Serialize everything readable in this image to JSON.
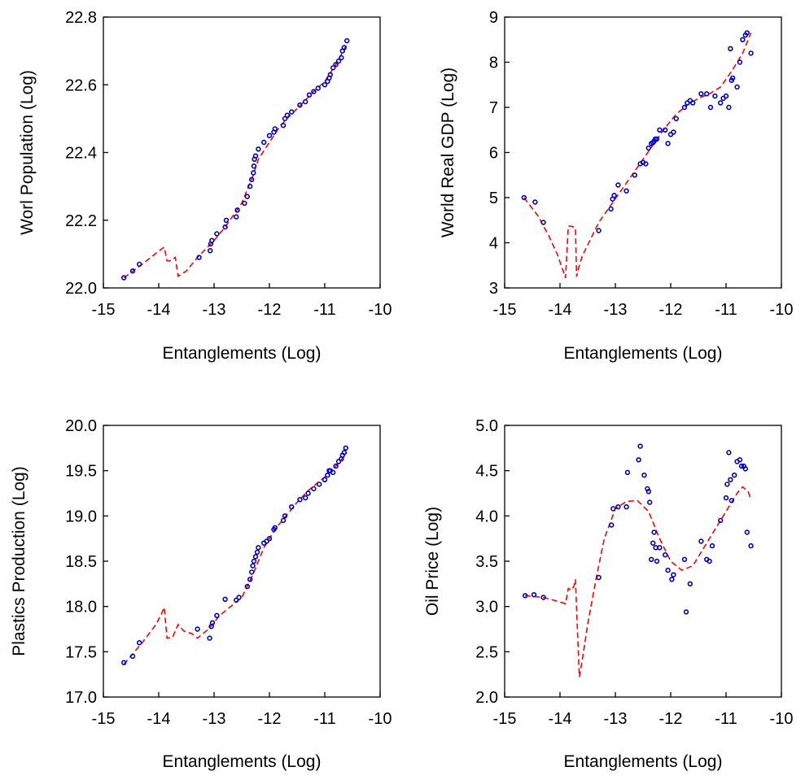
{
  "chart_data": [
    {
      "type": "scatter",
      "xlabel": "Entanglements (Log)",
      "ylabel": "Worl Population (Log)",
      "xlim": [
        -15,
        -10
      ],
      "ylim": [
        22.0,
        22.8
      ],
      "xticks": [
        "-15",
        "-14",
        "-13",
        "-12",
        "-11",
        "-10"
      ],
      "yticks": [
        "22.0",
        "22.2",
        "22.4",
        "22.6",
        "22.8"
      ],
      "series": [
        {
          "kind": "points",
          "color": "#0000cc",
          "x": [
            -14.63,
            -14.47,
            -14.35,
            -13.27,
            -13.07,
            -13.06,
            -13.04,
            -12.95,
            -12.8,
            -12.78,
            -12.6,
            -12.58,
            -12.45,
            -12.4,
            -12.35,
            -12.32,
            -12.29,
            -12.28,
            -12.27,
            -12.25,
            -12.2,
            -12.1,
            -12.0,
            -11.92,
            -11.9,
            -11.75,
            -11.72,
            -11.68,
            -11.6,
            -11.45,
            -11.35,
            -11.28,
            -11.2,
            -11.12,
            -11.0,
            -10.95,
            -10.92,
            -10.9,
            -10.85,
            -10.8,
            -10.75,
            -10.7,
            -10.68,
            -10.65,
            -10.6
          ],
          "y": [
            22.03,
            22.05,
            22.07,
            22.09,
            22.11,
            22.13,
            22.14,
            22.16,
            22.18,
            22.2,
            22.21,
            22.23,
            22.25,
            22.27,
            22.3,
            22.32,
            22.34,
            22.36,
            22.38,
            22.39,
            22.41,
            22.43,
            22.45,
            22.46,
            22.47,
            22.48,
            22.5,
            22.51,
            22.52,
            22.54,
            22.55,
            22.57,
            22.58,
            22.59,
            22.6,
            22.61,
            22.62,
            22.63,
            22.65,
            22.66,
            22.67,
            22.68,
            22.7,
            22.71,
            22.73
          ]
        },
        {
          "kind": "fit",
          "color": "#ff0000",
          "x": [
            -14.63,
            -14.3,
            -13.95,
            -13.9,
            -13.85,
            -13.8,
            -13.7,
            -13.65,
            -13.6,
            -13.5,
            -13.3,
            -13.0,
            -12.8,
            -12.5,
            -12.3,
            -12.2,
            -12.0,
            -11.8,
            -11.5,
            -11.2,
            -11.0,
            -10.8,
            -10.6
          ],
          "y": [
            22.03,
            22.07,
            22.115,
            22.12,
            22.08,
            22.08,
            22.09,
            22.035,
            22.04,
            22.05,
            22.09,
            22.14,
            22.18,
            22.25,
            22.33,
            22.38,
            22.43,
            22.48,
            22.53,
            22.58,
            22.61,
            22.66,
            22.72
          ]
        }
      ]
    },
    {
      "type": "scatter",
      "xlabel": "Entanglements (Log)",
      "ylabel": "World Real GDP (Log)",
      "xlim": [
        -15,
        -10
      ],
      "ylim": [
        3,
        9
      ],
      "xticks": [
        "-15",
        "-14",
        "-13",
        "-12",
        "-11",
        "-10"
      ],
      "yticks": [
        "3",
        "4",
        "5",
        "6",
        "7",
        "8",
        "9"
      ],
      "series": [
        {
          "kind": "points",
          "color": "#0000cc",
          "x": [
            -14.65,
            -14.45,
            -14.3,
            -13.3,
            -13.08,
            -13.05,
            -13.02,
            -12.95,
            -12.8,
            -12.65,
            -12.55,
            -12.5,
            -12.45,
            -12.4,
            -12.35,
            -12.32,
            -12.3,
            -12.28,
            -12.25,
            -12.2,
            -12.1,
            -12.05,
            -12.0,
            -11.95,
            -11.9,
            -11.75,
            -11.7,
            -11.65,
            -11.6,
            -11.45,
            -11.35,
            -11.28,
            -11.2,
            -11.1,
            -11.05,
            -11.0,
            -10.95,
            -10.92,
            -10.9,
            -10.88,
            -10.8,
            -10.75,
            -10.7,
            -10.65,
            -10.62,
            -10.55
          ],
          "y": [
            5.0,
            4.9,
            4.45,
            4.27,
            4.75,
            4.97,
            5.05,
            5.28,
            5.15,
            5.5,
            5.75,
            5.78,
            5.75,
            6.1,
            6.2,
            6.22,
            6.25,
            6.3,
            6.3,
            6.5,
            6.5,
            6.2,
            6.4,
            6.45,
            6.75,
            7.0,
            7.1,
            7.15,
            7.1,
            7.3,
            7.3,
            7.0,
            7.25,
            7.1,
            7.2,
            7.25,
            7.0,
            8.3,
            7.6,
            7.65,
            7.45,
            8.0,
            8.5,
            8.6,
            8.65,
            8.2
          ]
        },
        {
          "kind": "fit",
          "color": "#ff0000",
          "x": [
            -14.65,
            -14.4,
            -14.2,
            -14.05,
            -13.95,
            -13.9,
            -13.85,
            -13.8,
            -13.72,
            -13.7,
            -13.65,
            -13.6,
            -13.5,
            -13.3,
            -13.1,
            -12.9,
            -12.7,
            -12.5,
            -12.3,
            -12.1,
            -11.9,
            -11.7,
            -11.5,
            -11.3,
            -11.1,
            -10.9,
            -10.7,
            -10.55
          ],
          "y": [
            5.0,
            4.6,
            4.15,
            3.75,
            3.4,
            3.22,
            4.37,
            4.37,
            4.33,
            3.25,
            3.5,
            3.7,
            3.95,
            4.45,
            4.8,
            5.15,
            5.5,
            5.85,
            6.2,
            6.55,
            6.85,
            7.05,
            7.2,
            7.3,
            7.45,
            7.8,
            8.2,
            8.65
          ]
        }
      ]
    },
    {
      "type": "scatter",
      "xlabel": "Entanglements (Log)",
      "ylabel": "Plastics Production (Log)",
      "xlim": [
        -15,
        -10
      ],
      "ylim": [
        17.0,
        20.0
      ],
      "xticks": [
        "-15",
        "-14",
        "-13",
        "-12",
        "-11",
        "-10"
      ],
      "yticks": [
        "17.0",
        "17.5",
        "18.0",
        "18.5",
        "19.0",
        "19.5",
        "20.0"
      ],
      "series": [
        {
          "kind": "points",
          "color": "#0000cc",
          "x": [
            -14.63,
            -14.47,
            -14.35,
            -13.3,
            -13.08,
            -13.05,
            -13.03,
            -12.95,
            -12.8,
            -12.6,
            -12.55,
            -12.4,
            -12.35,
            -12.32,
            -12.3,
            -12.28,
            -12.25,
            -12.22,
            -12.2,
            -12.1,
            -12.05,
            -12.0,
            -11.92,
            -11.9,
            -11.75,
            -11.72,
            -11.6,
            -11.45,
            -11.35,
            -11.3,
            -11.2,
            -11.1,
            -11.0,
            -10.95,
            -10.92,
            -10.9,
            -10.85,
            -10.8,
            -10.75,
            -10.7,
            -10.68,
            -10.65,
            -10.62
          ],
          "y": [
            17.38,
            17.45,
            17.6,
            17.75,
            17.65,
            17.78,
            17.82,
            17.9,
            18.08,
            18.07,
            18.1,
            18.22,
            18.3,
            18.38,
            18.45,
            18.5,
            18.55,
            18.6,
            18.65,
            18.7,
            18.72,
            18.75,
            18.85,
            18.87,
            18.95,
            19.0,
            19.1,
            19.18,
            19.2,
            19.25,
            19.3,
            19.35,
            19.4,
            19.45,
            19.5,
            19.5,
            19.48,
            19.55,
            19.6,
            19.63,
            19.67,
            19.7,
            19.75
          ]
        },
        {
          "kind": "fit",
          "color": "#ff0000",
          "x": [
            -14.63,
            -14.3,
            -14.05,
            -13.95,
            -13.9,
            -13.85,
            -13.75,
            -13.65,
            -13.55,
            -13.4,
            -13.3,
            -13.1,
            -12.9,
            -12.7,
            -12.5,
            -12.3,
            -12.1,
            -11.9,
            -11.7,
            -11.5,
            -11.3,
            -11.1,
            -10.9,
            -10.7,
            -10.6
          ],
          "y": [
            17.36,
            17.6,
            17.8,
            17.92,
            17.99,
            17.65,
            17.66,
            17.8,
            17.73,
            17.7,
            17.65,
            17.75,
            17.9,
            18.0,
            18.1,
            18.35,
            18.65,
            18.85,
            19.0,
            19.15,
            19.28,
            19.38,
            19.48,
            19.62,
            19.7
          ]
        }
      ]
    },
    {
      "type": "scatter",
      "xlabel": "Entanglements (Log)",
      "ylabel": "Oil Price (Log)",
      "xlim": [
        -15,
        -10
      ],
      "ylim": [
        2.0,
        5.0
      ],
      "xticks": [
        "-15",
        "-14",
        "-13",
        "-12",
        "-11",
        "-10"
      ],
      "yticks": [
        "2.0",
        "2.5",
        "3.0",
        "3.5",
        "4.0",
        "4.5",
        "5.0"
      ],
      "series": [
        {
          "kind": "points",
          "color": "#0000cc",
          "x": [
            -14.63,
            -14.47,
            -14.3,
            -13.3,
            -13.07,
            -13.04,
            -12.95,
            -12.8,
            -12.78,
            -12.58,
            -12.55,
            -12.48,
            -12.42,
            -12.4,
            -12.38,
            -12.35,
            -12.32,
            -12.3,
            -12.27,
            -12.25,
            -12.2,
            -12.1,
            -12.05,
            -11.98,
            -11.95,
            -11.75,
            -11.72,
            -11.65,
            -11.45,
            -11.35,
            -11.3,
            -11.25,
            -11.1,
            -11.0,
            -10.98,
            -10.95,
            -10.92,
            -10.9,
            -10.85,
            -10.8,
            -10.75,
            -10.72,
            -10.68,
            -10.65,
            -10.62,
            -10.55
          ],
          "y": [
            3.12,
            3.13,
            3.1,
            3.32,
            3.9,
            4.08,
            4.1,
            4.1,
            4.48,
            4.62,
            4.77,
            4.45,
            4.3,
            4.27,
            4.15,
            3.52,
            3.7,
            3.82,
            3.65,
            3.5,
            3.65,
            3.57,
            3.4,
            3.3,
            3.35,
            3.52,
            2.94,
            3.25,
            3.72,
            3.52,
            3.5,
            3.67,
            3.95,
            4.2,
            4.35,
            4.7,
            4.4,
            4.17,
            4.45,
            4.6,
            4.62,
            4.55,
            4.55,
            4.52,
            3.82,
            3.67
          ]
        },
        {
          "kind": "fit",
          "color": "#ff0000",
          "x": [
            -14.63,
            -14.3,
            -14.0,
            -13.9,
            -13.85,
            -13.8,
            -13.75,
            -13.72,
            -13.68,
            -13.65,
            -13.6,
            -13.5,
            -13.35,
            -13.2,
            -13.0,
            -12.8,
            -12.6,
            -12.4,
            -12.2,
            -12.0,
            -11.8,
            -11.6,
            -11.4,
            -11.2,
            -11.0,
            -10.8,
            -10.7,
            -10.6,
            -10.55
          ],
          "y": [
            3.12,
            3.1,
            3.05,
            3.03,
            3.2,
            3.18,
            3.22,
            3.3,
            2.65,
            2.22,
            2.4,
            2.8,
            3.3,
            3.75,
            4.08,
            4.16,
            4.17,
            4.05,
            3.75,
            3.5,
            3.4,
            3.45,
            3.65,
            3.85,
            4.05,
            4.25,
            4.32,
            4.27,
            4.18
          ]
        }
      ]
    }
  ]
}
